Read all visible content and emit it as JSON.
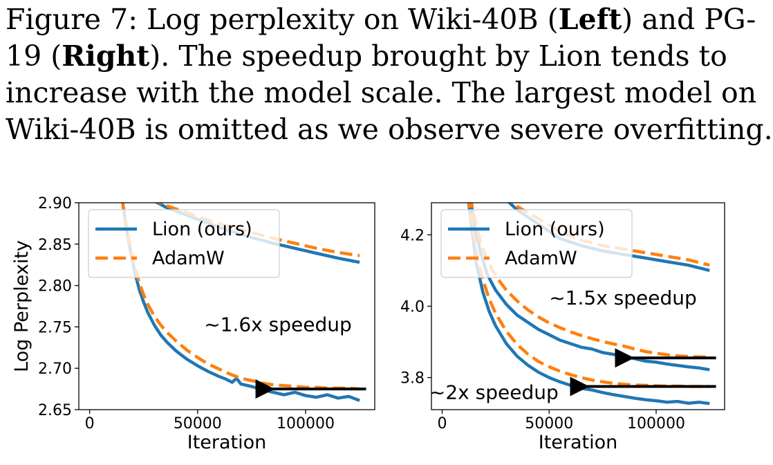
{
  "caption": {
    "line1_a": "Figure 7: Log perplexity on Wiki-40B (",
    "line1_b": "Left",
    "line1_c": ") and PG-",
    "line2_a": "19 (",
    "line2_b": "Right",
    "line2_c": ").  The speedup brought by Lion tends to",
    "line3": "increase with the model scale. The largest model on",
    "line4": "Wiki-40B is omitted as we observe severe overfitting."
  },
  "colors": {
    "lion": "#1f77b4",
    "adamw": "#ff7f0e",
    "arrow": "#000000"
  },
  "chart_data": [
    {
      "type": "line",
      "panel": "left",
      "title": "",
      "xlabel": "Iteration",
      "ylabel": "Log Perplexity",
      "xlim": [
        -5000,
        132000
      ],
      "ylim": [
        2.65,
        2.9
      ],
      "xticks": [
        0,
        50000,
        100000
      ],
      "xtick_labels": [
        "0",
        "50000",
        "100000"
      ],
      "yticks": [
        2.65,
        2.7,
        2.75,
        2.8,
        2.85,
        2.9
      ],
      "ytick_labels": [
        "2.65",
        "2.70",
        "2.75",
        "2.80",
        "2.85",
        "2.90"
      ],
      "legend": {
        "placement": "upper-left",
        "entries": [
          "Lion (ours)",
          "AdamW"
        ]
      },
      "annotation": {
        "text": "~1.6x speedup",
        "x": 53000,
        "y": 2.745
      },
      "arrow": {
        "from": [
          128000,
          2.675
        ],
        "to": [
          80000,
          2.675
        ]
      },
      "series": [
        {
          "name": "Lion (ours)",
          "group": "large",
          "style": "solid",
          "x": [
            28000,
            35000,
            45000,
            55000,
            65000,
            75000,
            85000,
            95000,
            105000,
            115000,
            125000
          ],
          "y": [
            2.905,
            2.895,
            2.885,
            2.875,
            2.866,
            2.858,
            2.851,
            2.845,
            2.839,
            2.833,
            2.828
          ]
        },
        {
          "name": "AdamW",
          "group": "large",
          "style": "dashed",
          "x": [
            28000,
            35000,
            45000,
            55000,
            65000,
            75000,
            85000,
            95000,
            105000,
            115000,
            125000
          ],
          "y": [
            2.905,
            2.897,
            2.888,
            2.879,
            2.871,
            2.864,
            2.857,
            2.851,
            2.845,
            2.84,
            2.836
          ]
        },
        {
          "name": "Lion (ours)",
          "group": "small",
          "style": "solid",
          "x": [
            15000,
            17000,
            19000,
            21000,
            23000,
            25000,
            27000,
            30000,
            33000,
            36000,
            40000,
            45000,
            50000,
            55000,
            60000,
            63000,
            66000,
            68000,
            70000,
            75000,
            80000,
            85000,
            90000,
            95000,
            100000,
            105000,
            110000,
            115000,
            120000,
            125000
          ],
          "y": [
            2.905,
            2.87,
            2.84,
            2.815,
            2.795,
            2.78,
            2.767,
            2.752,
            2.74,
            2.731,
            2.721,
            2.711,
            2.703,
            2.696,
            2.69,
            2.687,
            2.683,
            2.688,
            2.681,
            2.678,
            2.674,
            2.671,
            2.668,
            2.671,
            2.667,
            2.665,
            2.668,
            2.664,
            2.666,
            2.661
          ]
        },
        {
          "name": "AdamW",
          "group": "small",
          "style": "dashed",
          "x": [
            15000,
            17000,
            19000,
            21000,
            23000,
            25000,
            27000,
            30000,
            33000,
            36000,
            40000,
            45000,
            50000,
            55000,
            60000,
            65000,
            70000,
            75000,
            80000,
            85000,
            90000,
            95000,
            100000,
            105000,
            110000,
            115000,
            120000,
            125000
          ],
          "y": [
            2.905,
            2.872,
            2.845,
            2.822,
            2.803,
            2.789,
            2.777,
            2.763,
            2.752,
            2.743,
            2.733,
            2.722,
            2.713,
            2.705,
            2.699,
            2.693,
            2.688,
            2.685,
            2.682,
            2.68,
            2.679,
            2.678,
            2.677,
            2.677,
            2.676,
            2.676,
            2.676,
            2.675
          ]
        }
      ]
    },
    {
      "type": "line",
      "panel": "right",
      "title": "",
      "xlabel": "Iteration",
      "ylabel": "",
      "xlim": [
        -5000,
        132000
      ],
      "ylim": [
        3.71,
        4.29
      ],
      "xticks": [
        0,
        50000,
        100000
      ],
      "xtick_labels": [
        "0",
        "50000",
        "100000"
      ],
      "yticks": [
        3.8,
        4.0,
        4.2
      ],
      "ytick_labels": [
        "3.8",
        "4.0",
        "4.2"
      ],
      "legend": {
        "placement": "upper-left",
        "entries": [
          "Lion (ours)",
          "AdamW"
        ]
      },
      "annotations": [
        {
          "text": "~1.5x speedup",
          "x": 50000,
          "y": 4.005
        },
        {
          "text": "~2x speedup",
          "x": -6000,
          "y": 3.74
        }
      ],
      "arrows": [
        {
          "from": [
            128000,
            3.855
          ],
          "to": [
            84000,
            3.855
          ]
        },
        {
          "from": [
            128000,
            3.775
          ],
          "to": [
            63000,
            3.775
          ]
        }
      ],
      "series": [
        {
          "name": "Lion (ours)",
          "group": "xl",
          "style": "solid",
          "x": [
            28000,
            35000,
            45000,
            55000,
            65000,
            75000,
            85000,
            95000,
            105000,
            115000,
            125000
          ],
          "y": [
            4.31,
            4.27,
            4.23,
            4.19,
            4.17,
            4.155,
            4.145,
            4.135,
            4.125,
            4.115,
            4.1
          ]
        },
        {
          "name": "AdamW",
          "group": "xl",
          "style": "dashed",
          "x": [
            28000,
            35000,
            45000,
            55000,
            65000,
            75000,
            85000,
            95000,
            105000,
            115000,
            125000
          ],
          "y": [
            4.31,
            4.28,
            4.245,
            4.21,
            4.185,
            4.17,
            4.16,
            4.15,
            4.14,
            4.13,
            4.115
          ]
        },
        {
          "name": "Lion (ours)",
          "group": "mid",
          "style": "solid",
          "x": [
            13000,
            15000,
            18000,
            21000,
            25000,
            30000,
            35000,
            40000,
            45000,
            50000,
            55000,
            60000,
            65000,
            70000,
            75000,
            80000,
            85000,
            90000,
            95000,
            100000,
            105000,
            110000,
            115000,
            120000,
            125000
          ],
          "y": [
            4.31,
            4.23,
            4.15,
            4.09,
            4.045,
            4.005,
            3.975,
            3.955,
            3.935,
            3.92,
            3.905,
            3.895,
            3.885,
            3.88,
            3.87,
            3.865,
            3.86,
            3.853,
            3.846,
            3.843,
            3.838,
            3.834,
            3.83,
            3.827,
            3.822
          ]
        },
        {
          "name": "AdamW",
          "group": "mid",
          "style": "dashed",
          "x": [
            13000,
            15000,
            18000,
            21000,
            25000,
            30000,
            35000,
            40000,
            45000,
            50000,
            55000,
            60000,
            65000,
            70000,
            75000,
            80000,
            85000,
            90000,
            95000,
            100000,
            105000,
            110000,
            115000,
            120000,
            125000
          ],
          "y": [
            4.31,
            4.25,
            4.18,
            4.13,
            4.085,
            4.045,
            4.015,
            3.99,
            3.97,
            3.953,
            3.94,
            3.928,
            3.918,
            3.909,
            3.901,
            3.894,
            3.888,
            3.88,
            3.873,
            3.868,
            3.864,
            3.861,
            3.859,
            3.858,
            3.857
          ]
        },
        {
          "name": "Lion (ours)",
          "group": "small",
          "style": "solid",
          "x": [
            12000,
            14000,
            16000,
            19000,
            22000,
            25000,
            30000,
            35000,
            40000,
            45000,
            50000,
            55000,
            60000,
            65000,
            70000,
            75000,
            80000,
            85000,
            90000,
            95000,
            100000,
            105000,
            110000,
            115000,
            120000,
            125000
          ],
          "y": [
            4.31,
            4.21,
            4.12,
            4.04,
            3.985,
            3.945,
            3.895,
            3.86,
            3.835,
            3.815,
            3.8,
            3.788,
            3.778,
            3.77,
            3.765,
            3.758,
            3.752,
            3.747,
            3.742,
            3.738,
            3.735,
            3.731,
            3.733,
            3.728,
            3.731,
            3.727
          ]
        },
        {
          "name": "AdamW",
          "group": "small",
          "style": "dashed",
          "x": [
            12000,
            14000,
            16000,
            19000,
            22000,
            25000,
            30000,
            35000,
            40000,
            45000,
            50000,
            55000,
            60000,
            65000,
            70000,
            75000,
            80000,
            85000,
            90000,
            95000,
            100000,
            105000,
            110000,
            115000,
            120000,
            125000
          ],
          "y": [
            4.31,
            4.23,
            4.15,
            4.075,
            4.02,
            3.98,
            3.93,
            3.893,
            3.866,
            3.845,
            3.83,
            3.818,
            3.808,
            3.8,
            3.793,
            3.788,
            3.784,
            3.781,
            3.779,
            3.778,
            3.777,
            3.776,
            3.776,
            3.775,
            3.775,
            3.775
          ]
        }
      ]
    }
  ]
}
